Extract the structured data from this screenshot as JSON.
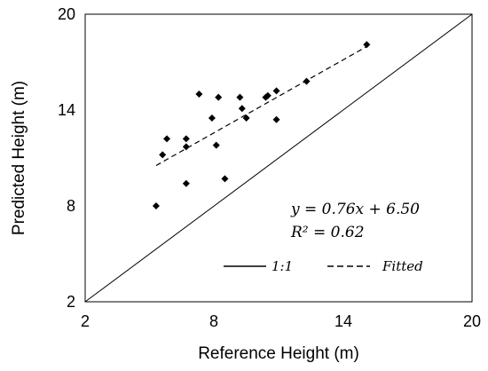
{
  "chart_data": {
    "type": "scatter",
    "xlabel": "Reference Height (m)",
    "ylabel": "Predicted Height (m)",
    "xlim": [
      2,
      20
    ],
    "ylim": [
      2,
      20
    ],
    "xticks": [
      "2",
      "8",
      "14",
      "20"
    ],
    "yticks": [
      "2",
      "8",
      "14",
      "20"
    ],
    "grid": false,
    "series": [
      {
        "name": "",
        "marker": "diamond",
        "color": "#000000",
        "points": [
          [
            5.3,
            8.0
          ],
          [
            5.6,
            11.2
          ],
          [
            5.8,
            12.2
          ],
          [
            6.7,
            9.4
          ],
          [
            6.7,
            11.7
          ],
          [
            6.7,
            12.2
          ],
          [
            7.3,
            15.0
          ],
          [
            7.9,
            13.5
          ],
          [
            8.1,
            11.8
          ],
          [
            8.2,
            14.8
          ],
          [
            8.5,
            9.7
          ],
          [
            9.2,
            14.8
          ],
          [
            9.3,
            14.1
          ],
          [
            9.5,
            13.5
          ],
          [
            10.4,
            14.8
          ],
          [
            10.5,
            14.9
          ],
          [
            10.9,
            15.2
          ],
          [
            10.9,
            13.4
          ],
          [
            12.3,
            15.8
          ],
          [
            15.1,
            18.1
          ]
        ]
      }
    ],
    "lines": [
      {
        "name": "1:1",
        "style": "solid",
        "slope": 1.0,
        "intercept": 0.0,
        "x_range": [
          2,
          20
        ]
      },
      {
        "name": "Fitted",
        "style": "dashed",
        "slope": 0.76,
        "intercept": 6.5,
        "x_range": [
          5.3,
          15.1
        ]
      }
    ],
    "equation": "y = 0.76x + 6.50",
    "r_squared": "R² = 0.62",
    "legend": {
      "position": "bottom-right",
      "entries": [
        "1:1",
        "Fitted"
      ]
    }
  }
}
